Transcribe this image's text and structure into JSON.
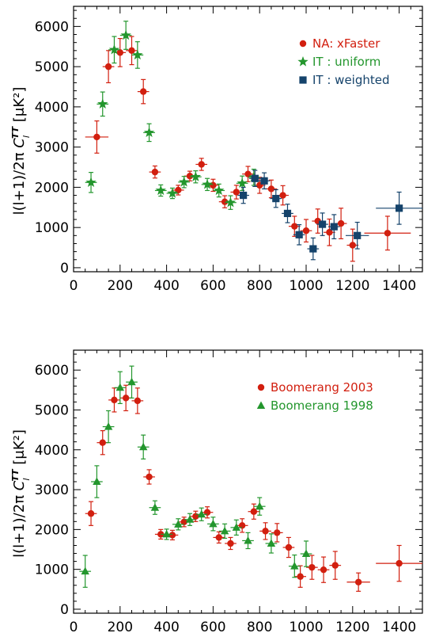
{
  "chart_data": [
    {
      "type": "scatter",
      "title": "",
      "xlabel": "",
      "ylabel": "l(l+1)/2π  C_l^TT [μK²]",
      "ylabel_left": "l(l+1)/2π",
      "ylabel_right": "C",
      "ylabel_right_sub": "l",
      "ylabel_right_sup": "TT",
      "ylabel_units": "[μK²]",
      "xlim": [
        0,
        1500
      ],
      "ylim": [
        -100,
        6500
      ],
      "xticks": [
        0,
        200,
        400,
        600,
        800,
        1000,
        1200,
        1400
      ],
      "yticks": [
        0,
        1000,
        2000,
        3000,
        4000,
        5000,
        6000
      ],
      "legend_position": "top-right",
      "series": [
        {
          "name": "NA: xFaster",
          "color": "#d21f0f",
          "marker": "circle",
          "points": [
            {
              "x": 100,
              "y": 3250,
              "xerr": 50,
              "yerr": 400
            },
            {
              "x": 150,
              "y": 5000,
              "xerr": 25,
              "yerr": 400
            },
            {
              "x": 200,
              "y": 5350,
              "xerr": 25,
              "yerr": 350
            },
            {
              "x": 250,
              "y": 5400,
              "xerr": 25,
              "yerr": 350
            },
            {
              "x": 300,
              "y": 4380,
              "xerr": 25,
              "yerr": 300
            },
            {
              "x": 350,
              "y": 2380,
              "xerr": 25,
              "yerr": 150
            },
            {
              "x": 450,
              "y": 1930,
              "xerr": 25,
              "yerr": 120
            },
            {
              "x": 500,
              "y": 2280,
              "xerr": 25,
              "yerr": 120
            },
            {
              "x": 550,
              "y": 2570,
              "xerr": 25,
              "yerr": 150
            },
            {
              "x": 600,
              "y": 2050,
              "xerr": 25,
              "yerr": 150
            },
            {
              "x": 650,
              "y": 1640,
              "xerr": 25,
              "yerr": 150
            },
            {
              "x": 700,
              "y": 1880,
              "xerr": 25,
              "yerr": 170
            },
            {
              "x": 750,
              "y": 2330,
              "xerr": 25,
              "yerr": 190
            },
            {
              "x": 800,
              "y": 2050,
              "xerr": 25,
              "yerr": 200
            },
            {
              "x": 850,
              "y": 1960,
              "xerr": 25,
              "yerr": 220
            },
            {
              "x": 900,
              "y": 1800,
              "xerr": 25,
              "yerr": 240
            },
            {
              "x": 950,
              "y": 1030,
              "xerr": 25,
              "yerr": 250
            },
            {
              "x": 1000,
              "y": 920,
              "xerr": 25,
              "yerr": 280
            },
            {
              "x": 1050,
              "y": 1160,
              "xerr": 25,
              "yerr": 300
            },
            {
              "x": 1100,
              "y": 880,
              "xerr": 25,
              "yerr": 330
            },
            {
              "x": 1150,
              "y": 1100,
              "xerr": 25,
              "yerr": 380
            },
            {
              "x": 1200,
              "y": 560,
              "xerr": 25,
              "yerr": 400
            },
            {
              "x": 1350,
              "y": 860,
              "xerr": 100,
              "yerr": 420
            }
          ]
        },
        {
          "name": "IT : uniform",
          "color": "#23962d",
          "marker": "star",
          "points": [
            {
              "x": 75,
              "y": 2120,
              "xerr": 25,
              "yerr": 250
            },
            {
              "x": 125,
              "y": 4070,
              "xerr": 25,
              "yerr": 300
            },
            {
              "x": 175,
              "y": 5420,
              "xerr": 25,
              "yerr": 330
            },
            {
              "x": 225,
              "y": 5780,
              "xerr": 25,
              "yerr": 350
            },
            {
              "x": 275,
              "y": 5290,
              "xerr": 25,
              "yerr": 330
            },
            {
              "x": 325,
              "y": 3360,
              "xerr": 25,
              "yerr": 220
            },
            {
              "x": 375,
              "y": 1920,
              "xerr": 25,
              "yerr": 140
            },
            {
              "x": 425,
              "y": 1850,
              "xerr": 25,
              "yerr": 130
            },
            {
              "x": 475,
              "y": 2130,
              "xerr": 25,
              "yerr": 140
            },
            {
              "x": 525,
              "y": 2260,
              "xerr": 25,
              "yerr": 150
            },
            {
              "x": 575,
              "y": 2070,
              "xerr": 25,
              "yerr": 150
            },
            {
              "x": 625,
              "y": 1920,
              "xerr": 25,
              "yerr": 160
            },
            {
              "x": 675,
              "y": 1620,
              "xerr": 25,
              "yerr": 170
            },
            {
              "x": 725,
              "y": 2100,
              "xerr": 25,
              "yerr": 180
            },
            {
              "x": 775,
              "y": 2250,
              "xerr": 25,
              "yerr": 200
            }
          ]
        },
        {
          "name": "IT : weighted",
          "color": "#15436b",
          "marker": "square",
          "points": [
            {
              "x": 730,
              "y": 1800,
              "xerr": 25,
              "yerr": 200
            },
            {
              "x": 780,
              "y": 2220,
              "xerr": 25,
              "yerr": 200
            },
            {
              "x": 820,
              "y": 2160,
              "xerr": 25,
              "yerr": 200
            },
            {
              "x": 870,
              "y": 1720,
              "xerr": 25,
              "yerr": 220
            },
            {
              "x": 920,
              "y": 1350,
              "xerr": 25,
              "yerr": 230
            },
            {
              "x": 970,
              "y": 820,
              "xerr": 25,
              "yerr": 250
            },
            {
              "x": 1030,
              "y": 470,
              "xerr": 25,
              "yerr": 270
            },
            {
              "x": 1070,
              "y": 1080,
              "xerr": 25,
              "yerr": 280
            },
            {
              "x": 1120,
              "y": 1020,
              "xerr": 25,
              "yerr": 300
            },
            {
              "x": 1220,
              "y": 800,
              "xerr": 50,
              "yerr": 330
            },
            {
              "x": 1400,
              "y": 1480,
              "xerr": 100,
              "yerr": 400
            }
          ]
        }
      ]
    },
    {
      "type": "scatter",
      "title": "",
      "xlabel": "",
      "ylabel": "l(l+1)/2π  C_l^TT [μK²]",
      "ylabel_left": "l(l+1)/2π",
      "ylabel_right": "C",
      "ylabel_right_sub": "l",
      "ylabel_right_sup": "TT",
      "ylabel_units": "[μK²]",
      "xlim": [
        0,
        1500
      ],
      "ylim": [
        -100,
        6500
      ],
      "xticks": [
        0,
        200,
        400,
        600,
        800,
        1000,
        1200,
        1400
      ],
      "yticks": [
        0,
        1000,
        2000,
        3000,
        4000,
        5000,
        6000
      ],
      "legend_position": "top-right",
      "series": [
        {
          "name": "Boomerang 2003",
          "color": "#d21f0f",
          "marker": "circle",
          "points": [
            {
              "x": 75,
              "y": 2400,
              "xerr": 25,
              "yerr": 300
            },
            {
              "x": 125,
              "y": 4180,
              "xerr": 25,
              "yerr": 300
            },
            {
              "x": 175,
              "y": 5250,
              "xerr": 25,
              "yerr": 300
            },
            {
              "x": 225,
              "y": 5300,
              "xerr": 25,
              "yerr": 320
            },
            {
              "x": 275,
              "y": 5230,
              "xerr": 25,
              "yerr": 320
            },
            {
              "x": 325,
              "y": 3320,
              "xerr": 25,
              "yerr": 180
            },
            {
              "x": 375,
              "y": 1880,
              "xerr": 25,
              "yerr": 120
            },
            {
              "x": 425,
              "y": 1860,
              "xerr": 25,
              "yerr": 120
            },
            {
              "x": 475,
              "y": 2190,
              "xerr": 25,
              "yerr": 120
            },
            {
              "x": 525,
              "y": 2330,
              "xerr": 25,
              "yerr": 130
            },
            {
              "x": 575,
              "y": 2430,
              "xerr": 25,
              "yerr": 140
            },
            {
              "x": 625,
              "y": 1800,
              "xerr": 25,
              "yerr": 140
            },
            {
              "x": 675,
              "y": 1650,
              "xerr": 25,
              "yerr": 150
            },
            {
              "x": 725,
              "y": 2100,
              "xerr": 25,
              "yerr": 170
            },
            {
              "x": 775,
              "y": 2450,
              "xerr": 25,
              "yerr": 190
            },
            {
              "x": 825,
              "y": 1960,
              "xerr": 25,
              "yerr": 210
            },
            {
              "x": 875,
              "y": 1920,
              "xerr": 25,
              "yerr": 230
            },
            {
              "x": 925,
              "y": 1550,
              "xerr": 25,
              "yerr": 250
            },
            {
              "x": 975,
              "y": 820,
              "xerr": 25,
              "yerr": 270
            },
            {
              "x": 1025,
              "y": 1050,
              "xerr": 25,
              "yerr": 300
            },
            {
              "x": 1075,
              "y": 990,
              "xerr": 25,
              "yerr": 320
            },
            {
              "x": 1125,
              "y": 1100,
              "xerr": 25,
              "yerr": 350
            },
            {
              "x": 1225,
              "y": 680,
              "xerr": 50,
              "yerr": 230
            },
            {
              "x": 1400,
              "y": 1150,
              "xerr": 100,
              "yerr": 450
            }
          ]
        },
        {
          "name": "Boomerang 1998",
          "color": "#23962d",
          "marker": "triangle",
          "points": [
            {
              "x": 50,
              "y": 950,
              "xerr": 25,
              "yerr": 400
            },
            {
              "x": 100,
              "y": 3200,
              "xerr": 25,
              "yerr": 400
            },
            {
              "x": 150,
              "y": 4580,
              "xerr": 25,
              "yerr": 400
            },
            {
              "x": 200,
              "y": 5560,
              "xerr": 25,
              "yerr": 400
            },
            {
              "x": 250,
              "y": 5700,
              "xerr": 25,
              "yerr": 400
            },
            {
              "x": 300,
              "y": 4070,
              "xerr": 25,
              "yerr": 300
            },
            {
              "x": 350,
              "y": 2550,
              "xerr": 25,
              "yerr": 170
            },
            {
              "x": 400,
              "y": 1880,
              "xerr": 25,
              "yerr": 130
            },
            {
              "x": 450,
              "y": 2130,
              "xerr": 25,
              "yerr": 140
            },
            {
              "x": 500,
              "y": 2250,
              "xerr": 25,
              "yerr": 150
            },
            {
              "x": 550,
              "y": 2380,
              "xerr": 25,
              "yerr": 160
            },
            {
              "x": 600,
              "y": 2140,
              "xerr": 25,
              "yerr": 170
            },
            {
              "x": 650,
              "y": 1960,
              "xerr": 25,
              "yerr": 180
            },
            {
              "x": 700,
              "y": 2050,
              "xerr": 25,
              "yerr": 190
            },
            {
              "x": 750,
              "y": 1720,
              "xerr": 25,
              "yerr": 200
            },
            {
              "x": 800,
              "y": 2580,
              "xerr": 25,
              "yerr": 220
            },
            {
              "x": 850,
              "y": 1650,
              "xerr": 25,
              "yerr": 240
            },
            {
              "x": 950,
              "y": 1080,
              "xerr": 25,
              "yerr": 280
            },
            {
              "x": 1000,
              "y": 1390,
              "xerr": 25,
              "yerr": 320
            }
          ]
        }
      ]
    }
  ]
}
